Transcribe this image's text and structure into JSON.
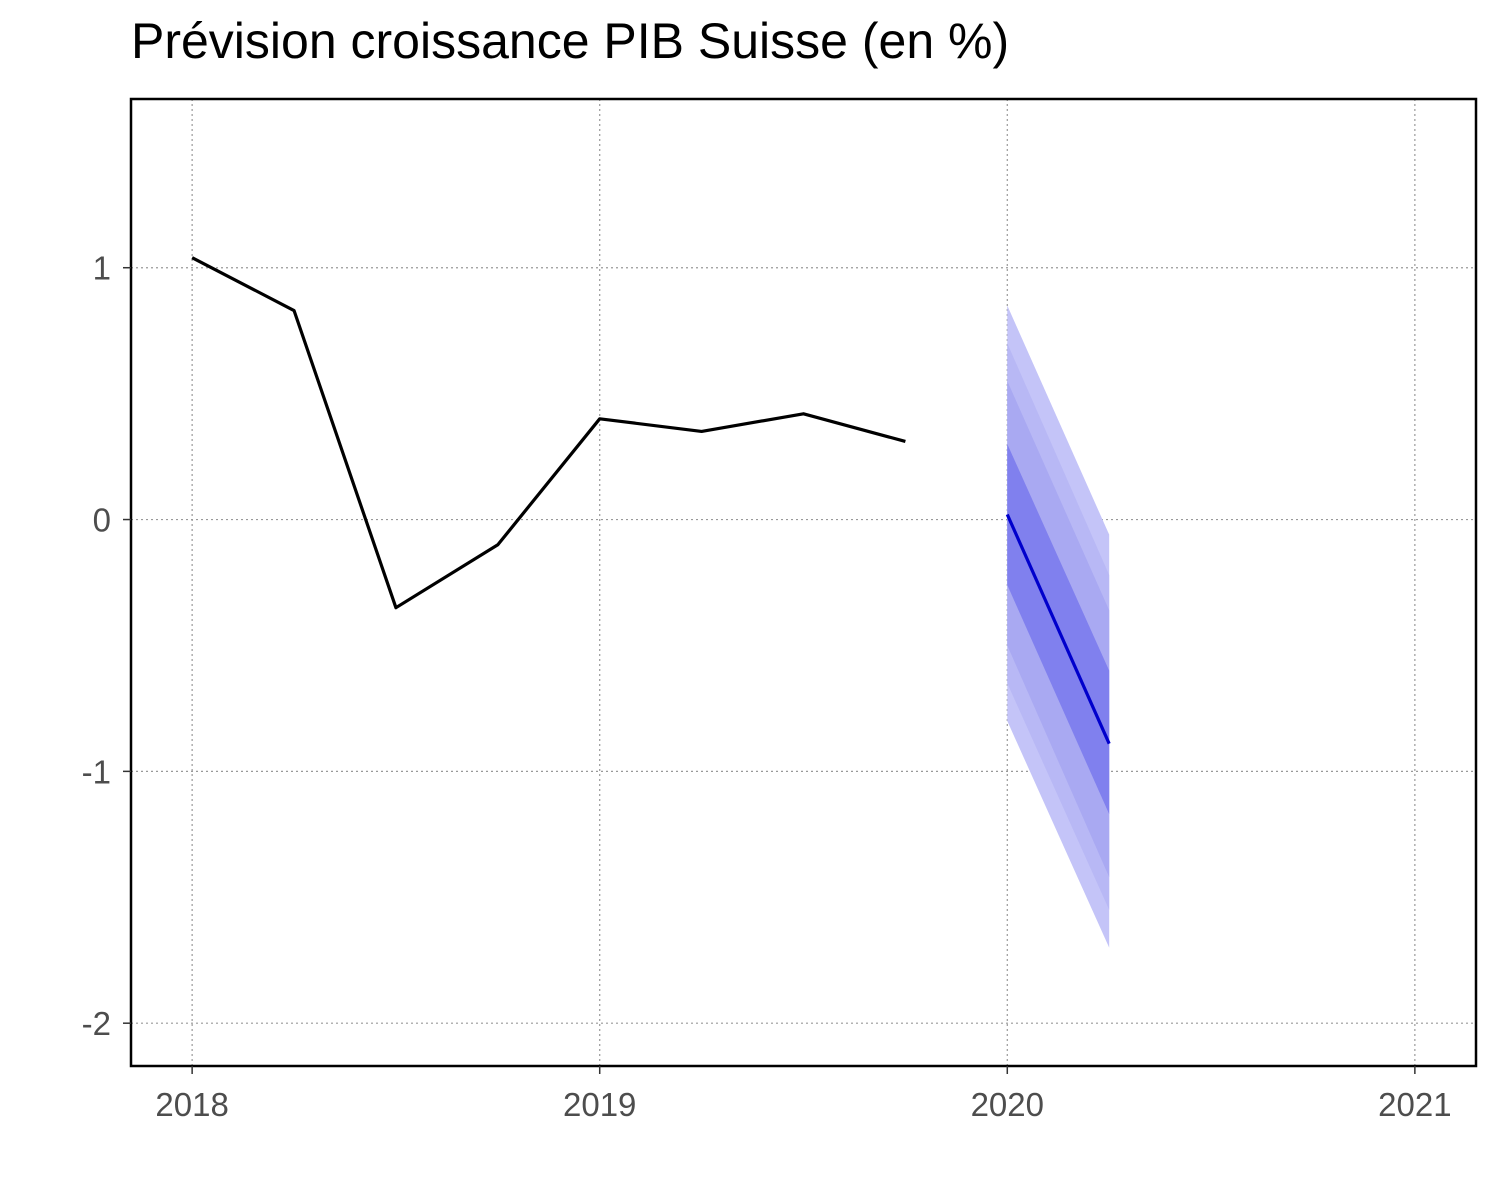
{
  "chart_data": {
    "type": "line",
    "title": "Prévision croissance PIB Suisse (en %)",
    "xlabel": "",
    "ylabel": "",
    "xlim": [
      2017.85,
      2021.15
    ],
    "ylim": [
      -2.17,
      1.67
    ],
    "x_ticks": [
      2018,
      2019,
      2020,
      2021
    ],
    "y_ticks": [
      -2,
      -1,
      0,
      1
    ],
    "grid": true,
    "series": [
      {
        "x": [
          2018.0,
          2018.25,
          2018.5,
          2018.75,
          2019.0,
          2019.25,
          2019.5,
          2019.75
        ],
        "values": [
          1.04,
          0.83,
          -0.35,
          -0.1,
          0.4,
          0.35,
          0.42,
          0.31
        ],
        "color": "#000000"
      },
      {
        "x": [
          2020.0,
          2020.25
        ],
        "values": [
          0.02,
          -0.89
        ],
        "color": "#0000cc"
      }
    ],
    "forecast_bands": {
      "x": [
        2020.0,
        2020.25
      ],
      "colors": [
        "#c4c4f8",
        "#b8b8f5",
        "#a9a9f2",
        "#8080ee"
      ],
      "bands": [
        {
          "lower": [
            -0.8,
            -1.7
          ],
          "upper": [
            0.85,
            -0.06
          ]
        },
        {
          "lower": [
            -0.65,
            -1.55
          ],
          "upper": [
            0.7,
            -0.22
          ]
        },
        {
          "lower": [
            -0.5,
            -1.42
          ],
          "upper": [
            0.55,
            -0.36
          ]
        },
        {
          "lower": [
            -0.26,
            -1.17
          ],
          "upper": [
            0.3,
            -0.6
          ]
        }
      ]
    }
  }
}
